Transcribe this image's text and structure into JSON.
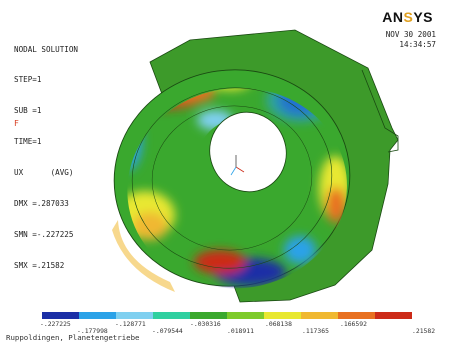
{
  "header": {
    "title": "NODAL SOLUTION",
    "lines": [
      "STEP=1",
      "SUB =1",
      "TIME=1",
      "UX      (AVG)",
      "DMX =.287033",
      "SMN =-.227225",
      "SMX =.21582"
    ],
    "marker": "F"
  },
  "brand": {
    "logo_prefix": "AN",
    "logo_accent": "S",
    "logo_mid": "Y",
    "logo_suffix": "S"
  },
  "timestamp": {
    "date": "NOV 30 2001",
    "time": "14:34:57"
  },
  "legend": {
    "colors": [
      "#1b2fa6",
      "#2aa2e8",
      "#7fd0f0",
      "#2fd0a0",
      "#3aa82e",
      "#7ecb2a",
      "#e8e830",
      "#f0b830",
      "#e87020",
      "#cc2a18"
    ],
    "upper_values": [
      "-.227225",
      "-.128771",
      "-.030316",
      ".068138",
      ".166592"
    ],
    "lower_values": [
      "-.177998",
      "-.079544",
      ".018911",
      ".117365",
      ".21582"
    ]
  },
  "caption": "Ruppoldingen, Planetengetriebe"
}
